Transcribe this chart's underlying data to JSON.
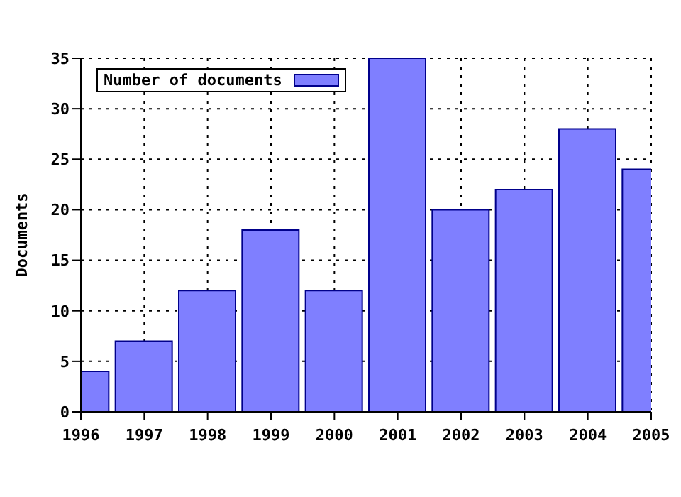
{
  "chart_data": {
    "type": "bar",
    "ylabel": "Documents",
    "x": [
      1996,
      1997,
      1998,
      1999,
      2000,
      2001,
      2002,
      2003,
      2004,
      2005
    ],
    "series": [
      {
        "name": "Number of documents",
        "color": "#7f7fff",
        "values": [
          4,
          7,
          12,
          18,
          12,
          35,
          20,
          22,
          28,
          24
        ]
      }
    ],
    "xlim": [
      1996,
      2005
    ],
    "xticks": [
      1996,
      1997,
      1998,
      1999,
      2000,
      2001,
      2002,
      2003,
      2004,
      2005
    ],
    "ylim": [
      0,
      35
    ],
    "yticks": [
      0,
      5,
      10,
      15,
      20,
      25,
      30,
      35
    ],
    "grid": true,
    "legend": "top left"
  }
}
